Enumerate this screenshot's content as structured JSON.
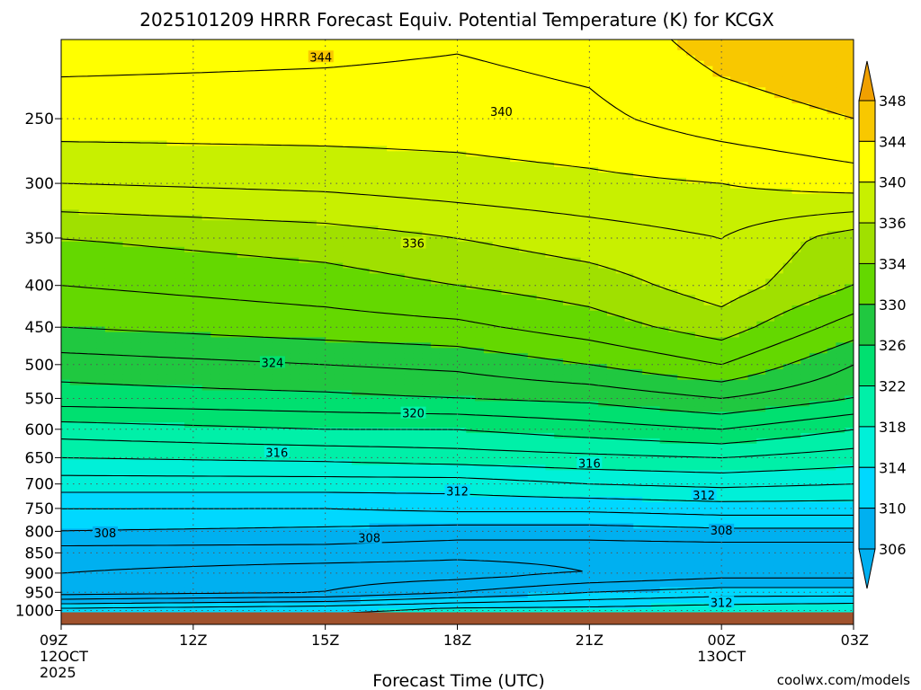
{
  "colors": {
    "ground": "#a0522d",
    "contour": "#000000",
    "credit": "#cc3333",
    "grid": "#555555"
  },
  "chart_data": {
    "type": "heatmap",
    "title": "2025101209 HRRR Forecast Equiv. Potential Temperature (K) for KCGX",
    "xlabel": "Forecast Time (UTC)",
    "ylabel": "",
    "credit": "coolwx.com/models",
    "y_scale": "pressure (hPa), inverted",
    "ylim": [
      1040,
      200
    ],
    "xlim_hours": [
      0,
      18
    ],
    "x_ticks": [
      {
        "hour": 0,
        "label": "09Z",
        "sub1": "12OCT",
        "sub2": "2025"
      },
      {
        "hour": 3,
        "label": "12Z",
        "sub1": "",
        "sub2": ""
      },
      {
        "hour": 6,
        "label": "15Z",
        "sub1": "",
        "sub2": ""
      },
      {
        "hour": 9,
        "label": "18Z",
        "sub1": "",
        "sub2": ""
      },
      {
        "hour": 12,
        "label": "21Z",
        "sub1": "",
        "sub2": ""
      },
      {
        "hour": 15,
        "label": "00Z",
        "sub1": "13OCT",
        "sub2": ""
      },
      {
        "hour": 18,
        "label": "03Z",
        "sub1": "",
        "sub2": ""
      }
    ],
    "y_ticks": [
      "250",
      "300",
      "350",
      "400",
      "450",
      "500",
      "550",
      "600",
      "650",
      "700",
      "750",
      "800",
      "850",
      "900",
      "950",
      "1000"
    ],
    "y_tick_values": [
      250,
      300,
      350,
      400,
      450,
      500,
      550,
      600,
      650,
      700,
      750,
      800,
      850,
      900,
      950,
      1000
    ],
    "surface_pressure": 1005,
    "colorbar": {
      "labels": [
        "348",
        "344",
        "340",
        "336",
        "334",
        "330",
        "326",
        "322",
        "318",
        "314",
        "310",
        "306"
      ],
      "colors": [
        "#f0a000",
        "#f8c800",
        "#ffff00",
        "#c8f000",
        "#a0e000",
        "#64d800",
        "#20c840",
        "#00e070",
        "#00f0a8",
        "#00f0d8",
        "#00d8ff",
        "#00b0f0"
      ],
      "over_color": "#f0a000",
      "under_color": "#00b0f0"
    },
    "profiles_by_hour": [
      {
        "hour": 0,
        "p": [
          250,
          300,
          350,
          400,
          450,
          500,
          550,
          600,
          650,
          700,
          750,
          800,
          850,
          900,
          950,
          1000
        ],
        "theta_e": [
          341,
          338,
          334,
          332,
          330,
          327,
          325,
          321,
          318,
          315,
          312,
          310,
          307,
          306,
          305,
          313
        ]
      },
      {
        "hour": 6,
        "p": [
          250,
          300,
          350,
          400,
          450,
          500,
          550,
          600,
          650,
          700,
          750,
          800,
          850,
          900,
          950,
          1000
        ],
        "theta_e": [
          341,
          338.5,
          335,
          333,
          331,
          328,
          325.5,
          322,
          318.5,
          315,
          312,
          309.5,
          307,
          305,
          306,
          314
        ]
      },
      {
        "hour": 9,
        "p": [
          250,
          300,
          350,
          400,
          450,
          500,
          550,
          600,
          650,
          700,
          750,
          800,
          850,
          900,
          950,
          1000
        ],
        "theta_e": [
          341,
          339,
          336,
          334,
          331.5,
          328.5,
          326,
          322,
          319,
          315,
          312.5,
          309,
          306.5,
          305,
          308,
          315
        ]
      },
      {
        "hour": 12,
        "p": [
          250,
          300,
          350,
          400,
          450,
          500,
          550,
          600,
          650,
          700,
          750,
          800,
          850,
          900,
          950,
          1000
        ],
        "theta_e": [
          341.5,
          339.5,
          337,
          335,
          333,
          330,
          326.5,
          323,
          319.5,
          316,
          312.5,
          309,
          306.5,
          306,
          310,
          315
        ]
      },
      {
        "hour": 15,
        "p": [
          250,
          300,
          350,
          400,
          450,
          500,
          550,
          600,
          650,
          700,
          750,
          800,
          850,
          900,
          950,
          1000
        ],
        "theta_e": [
          343,
          340,
          338,
          337,
          335,
          332,
          328,
          324,
          320,
          316.5,
          313,
          309.5,
          306.5,
          307,
          311,
          315.5
        ]
      },
      {
        "hour": 18,
        "p": [
          250,
          300,
          350,
          400,
          450,
          500,
          550,
          600,
          650,
          700,
          750,
          800,
          850,
          900,
          950,
          1000
        ],
        "theta_e": [
          344,
          341,
          335,
          334,
          331,
          328,
          326,
          322,
          319,
          316,
          313,
          309.5,
          306.5,
          307,
          311,
          316
        ]
      }
    ],
    "contour_labels": [
      {
        "value": "344",
        "hour": 5.9,
        "p": 210
      },
      {
        "value": "340",
        "hour": 10.0,
        "p": 245
      },
      {
        "value": "336",
        "hour": 8.0,
        "p": 355
      },
      {
        "value": "324",
        "hour": 4.8,
        "p": 497
      },
      {
        "value": "320",
        "hour": 8.0,
        "p": 573
      },
      {
        "value": "316",
        "hour": 4.9,
        "p": 640
      },
      {
        "value": "316",
        "hour": 12.0,
        "p": 660
      },
      {
        "value": "312",
        "hour": 9.0,
        "p": 714
      },
      {
        "value": "312",
        "hour": 14.6,
        "p": 722
      },
      {
        "value": "308",
        "hour": 1.0,
        "p": 803
      },
      {
        "value": "308",
        "hour": 7.0,
        "p": 815
      },
      {
        "value": "308",
        "hour": 15.0,
        "p": 797
      },
      {
        "value": "312",
        "hour": 15.0,
        "p": 977
      }
    ]
  }
}
